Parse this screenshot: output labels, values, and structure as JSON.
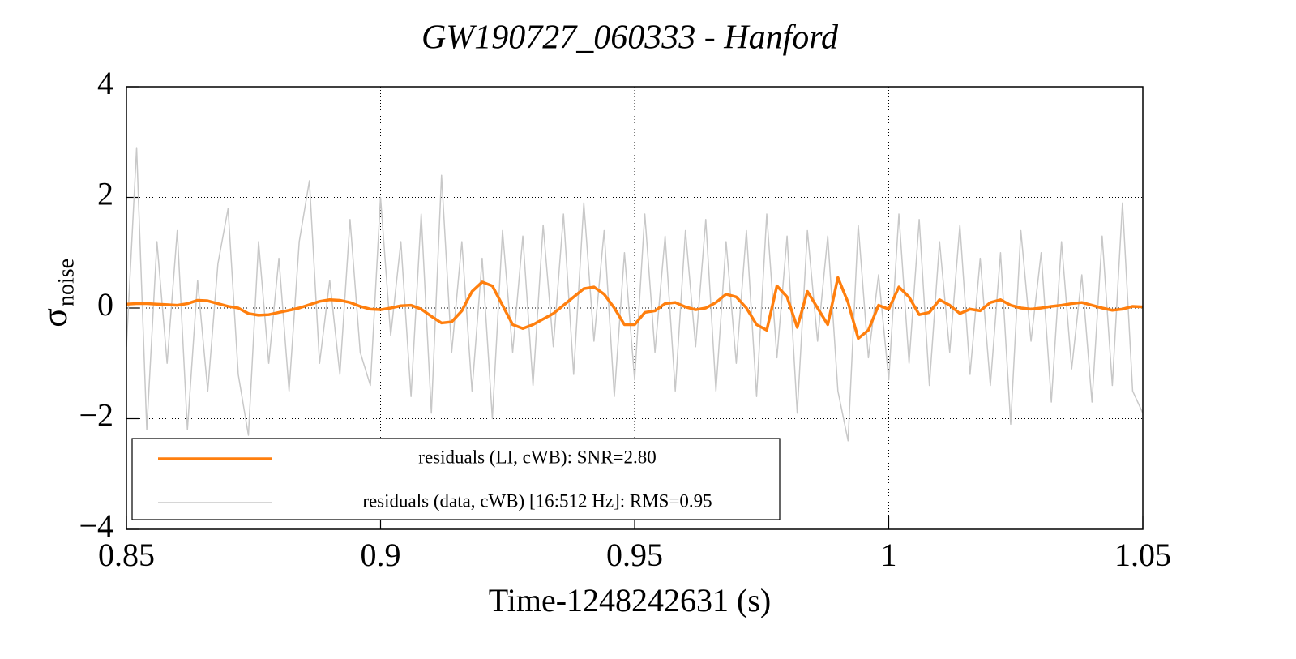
{
  "chart_data": {
    "type": "line",
    "title": "GW190727_060333 - Hanford",
    "xlabel": "Time-1248242631 (s)",
    "ylabel": "σ",
    "ylabel_subscript": "noise",
    "xlim": [
      0.85,
      1.05
    ],
    "ylim": [
      -4,
      4
    ],
    "xticks": [
      0.85,
      0.9,
      0.95,
      1,
      1.05
    ],
    "yticks": [
      {
        "value": -4,
        "label": "−4"
      },
      {
        "value": -2,
        "label": "−2"
      },
      0,
      2,
      4
    ],
    "grid": true,
    "legend": "lower left",
    "x": [
      0.85,
      0.852,
      0.854,
      0.856,
      0.858,
      0.86,
      0.862,
      0.864,
      0.866,
      0.868,
      0.87,
      0.872,
      0.874,
      0.876,
      0.878,
      0.88,
      0.882,
      0.884,
      0.886,
      0.888,
      0.89,
      0.892,
      0.894,
      0.896,
      0.898,
      0.9,
      0.902,
      0.904,
      0.906,
      0.908,
      0.91,
      0.912,
      0.914,
      0.916,
      0.918,
      0.92,
      0.922,
      0.924,
      0.926,
      0.928,
      0.93,
      0.932,
      0.934,
      0.936,
      0.938,
      0.94,
      0.942,
      0.944,
      0.946,
      0.948,
      0.95,
      0.952,
      0.954,
      0.956,
      0.958,
      0.96,
      0.962,
      0.964,
      0.966,
      0.968,
      0.97,
      0.972,
      0.974,
      0.976,
      0.978,
      0.98,
      0.982,
      0.984,
      0.986,
      0.988,
      0.99,
      0.992,
      0.994,
      0.996,
      0.998,
      1.0,
      1.002,
      1.004,
      1.006,
      1.008,
      1.01,
      1.012,
      1.014,
      1.016,
      1.018,
      1.02,
      1.022,
      1.024,
      1.026,
      1.028,
      1.03,
      1.032,
      1.034,
      1.036,
      1.038,
      1.04,
      1.042,
      1.044,
      1.046,
      1.048,
      1.05
    ],
    "series": [
      {
        "name": "residuals (LI, cWB): SNR=2.80",
        "color": "#ff7f0e",
        "width": 3.5,
        "values": [
          0.07,
          0.08,
          0.08,
          0.07,
          0.06,
          0.05,
          0.08,
          0.14,
          0.13,
          0.08,
          0.03,
          0.0,
          -0.1,
          -0.13,
          -0.12,
          -0.08,
          -0.04,
          0.0,
          0.06,
          0.12,
          0.15,
          0.14,
          0.1,
          0.03,
          -0.02,
          -0.03,
          0.0,
          0.04,
          0.05,
          -0.02,
          -0.15,
          -0.27,
          -0.25,
          -0.05,
          0.3,
          0.47,
          0.4,
          0.05,
          -0.3,
          -0.37,
          -0.3,
          -0.2,
          -0.1,
          0.05,
          0.2,
          0.35,
          0.38,
          0.25,
          0.0,
          -0.3,
          -0.3,
          -0.08,
          -0.05,
          0.08,
          0.1,
          0.02,
          -0.03,
          0.0,
          0.1,
          0.25,
          0.2,
          0.0,
          -0.3,
          -0.4,
          0.4,
          0.2,
          -0.35,
          0.3,
          0.0,
          -0.3,
          0.55,
          0.1,
          -0.55,
          -0.4,
          0.05,
          -0.02,
          0.38,
          0.2,
          -0.12,
          -0.08,
          0.15,
          0.05,
          -0.1,
          -0.02,
          -0.05,
          0.1,
          0.15,
          0.05,
          0.0,
          -0.02,
          0.0,
          0.03,
          0.05,
          0.08,
          0.1,
          0.05,
          0.0,
          -0.04,
          -0.02,
          0.03,
          0.02
        ]
      },
      {
        "name": "residuals (data, cWB) [16:512 Hz]: RMS=0.95",
        "color": "#c8c8c8",
        "width": 1.5,
        "values": [
          -0.7,
          2.9,
          -2.2,
          1.2,
          -1.0,
          1.4,
          -2.2,
          0.5,
          -1.5,
          0.8,
          1.8,
          -1.2,
          -2.3,
          1.2,
          -1.0,
          0.9,
          -1.5,
          1.2,
          2.3,
          -1.0,
          0.5,
          -1.2,
          1.6,
          -0.8,
          -1.4,
          2.0,
          -0.5,
          1.2,
          -1.6,
          1.7,
          -1.9,
          2.4,
          -0.8,
          1.2,
          -1.5,
          0.9,
          -2.0,
          1.4,
          -0.8,
          1.3,
          -1.4,
          1.5,
          -0.7,
          1.7,
          -1.2,
          1.9,
          -0.6,
          1.4,
          -1.6,
          1.0,
          -1.3,
          1.7,
          -0.8,
          1.3,
          -1.5,
          1.4,
          -0.7,
          1.6,
          -1.5,
          1.2,
          -1.0,
          1.4,
          -1.6,
          1.7,
          -0.9,
          1.3,
          -1.9,
          1.4,
          -0.6,
          1.3,
          -1.5,
          -2.4,
          1.5,
          -0.9,
          0.6,
          -1.3,
          1.7,
          -1.0,
          1.6,
          -1.4,
          1.2,
          -0.8,
          1.5,
          -1.2,
          0.9,
          -1.4,
          1.0,
          -2.1,
          1.4,
          -0.6,
          1.0,
          -1.7,
          1.2,
          -1.1,
          0.6,
          -1.7,
          1.3,
          -1.4,
          1.9,
          -1.5,
          -1.9
        ]
      }
    ]
  }
}
